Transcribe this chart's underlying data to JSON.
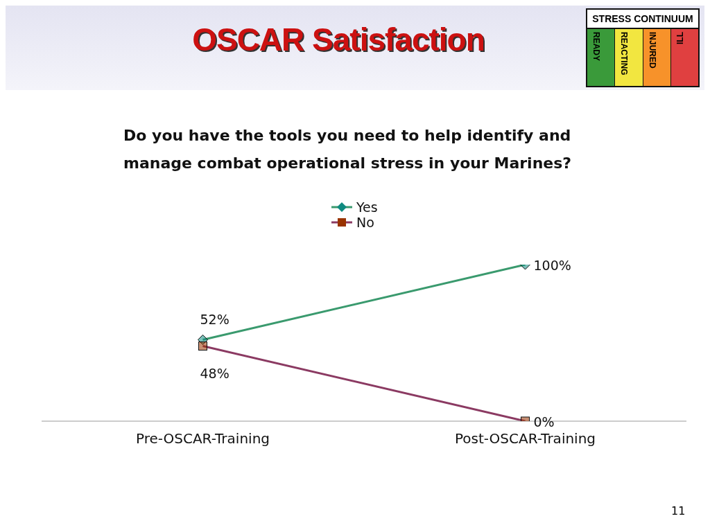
{
  "chart_data": {
    "type": "line",
    "title": "OSCAR Satisfaction",
    "subtitle": "Do you have the tools you need to help identify and manage  combat operational stress in your Marines?",
    "categories": [
      "Pre-OSCAR-Training",
      "Post-OSCAR-Training"
    ],
    "series": [
      {
        "name": "Yes",
        "color": "#3a9a6e",
        "marker": "diamond",
        "values": [
          52,
          100
        ],
        "value_labels": [
          "52%",
          "100%"
        ]
      },
      {
        "name": "No",
        "color": "#8b3a62",
        "marker": "square",
        "values": [
          48,
          0
        ],
        "value_labels": [
          "48%",
          "0%"
        ]
      }
    ],
    "legend": "top",
    "grid": false,
    "annotations": [
      "STRESS CONTINUUM",
      "READY",
      "REACTING",
      "INJURED",
      "ILL",
      "11"
    ]
  }
}
